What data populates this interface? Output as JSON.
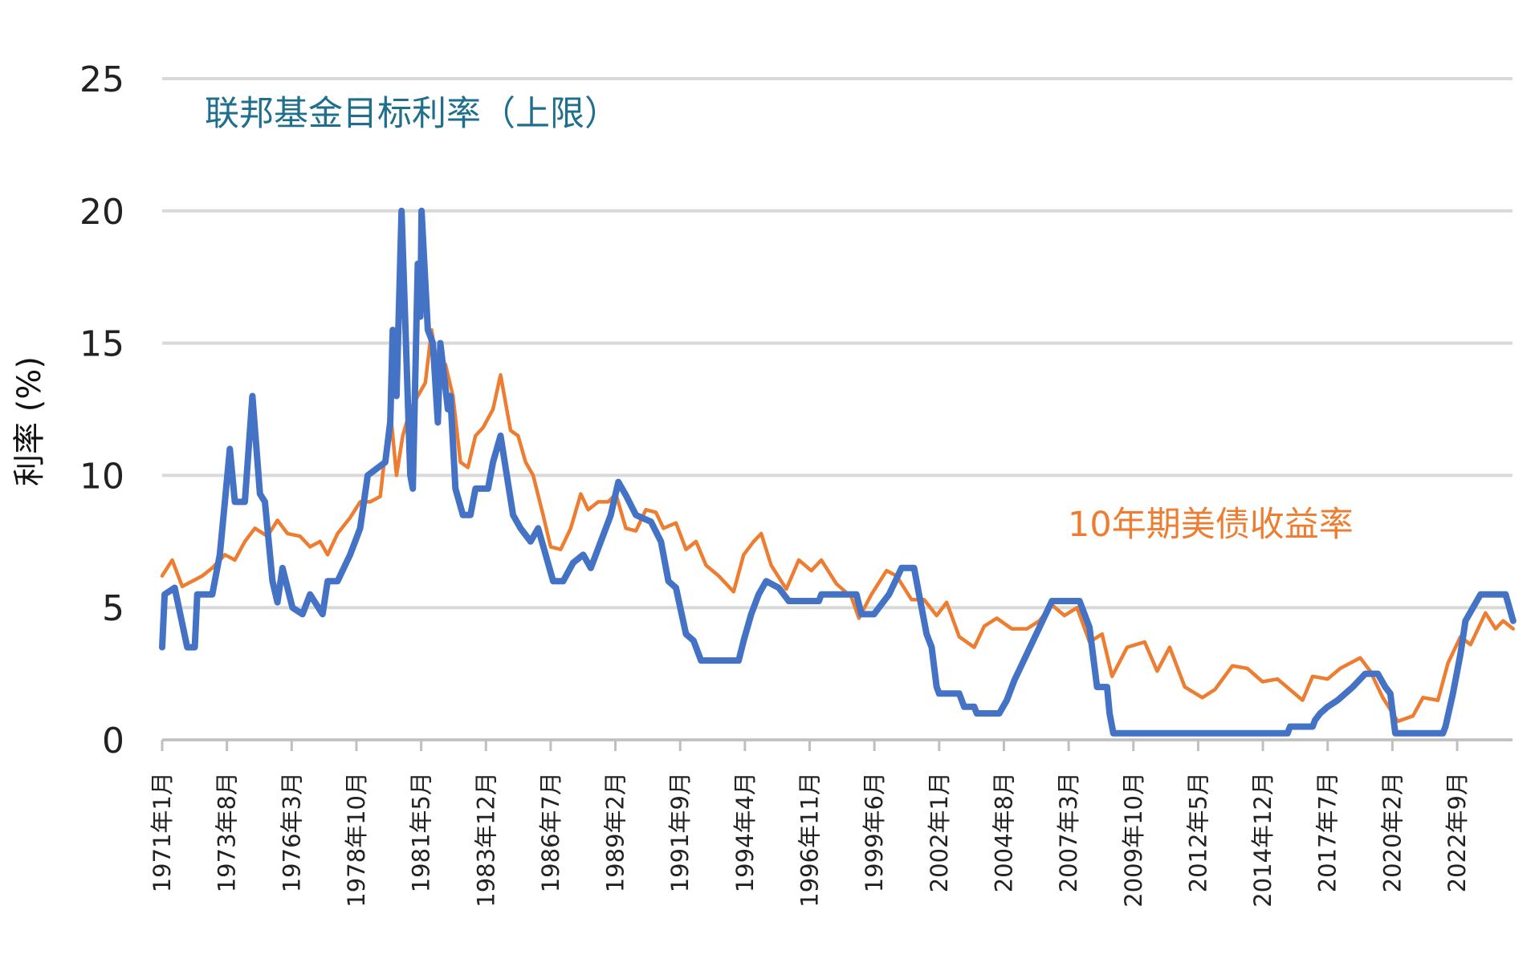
{
  "chart_data": {
    "type": "line",
    "title": "",
    "xlabel": "",
    "ylabel": "利率 (%)",
    "ylim": [
      0,
      25
    ],
    "yticks": [
      "0",
      "5",
      "10",
      "15",
      "20",
      "25"
    ],
    "ytick_values": [
      0,
      5,
      10,
      15,
      20,
      25
    ],
    "xlim": [
      1971.0,
      2024.9
    ],
    "grid": true,
    "xtick_labels": [
      "1971年1月",
      "1973年8月",
      "1976年3月",
      "1978年10月",
      "1981年5月",
      "1983年12月",
      "1986年7月",
      "1989年2月",
      "1991年9月",
      "1994年4月",
      "1996年11月",
      "1999年6月",
      "2002年1月",
      "2004年8月",
      "2007年3月",
      "2009年10月",
      "2012年5月",
      "2014年12月",
      "2017年7月",
      "2020年2月",
      "2022年9月"
    ],
    "xtick_values": [
      1971.0,
      1973.583,
      1976.167,
      1978.75,
      1981.333,
      1983.917,
      1986.5,
      1989.083,
      1991.667,
      1994.25,
      1996.833,
      1999.417,
      2002.0,
      2004.583,
      2007.167,
      2009.75,
      2012.333,
      2014.917,
      2017.5,
      2020.083,
      2022.667
    ],
    "series": [
      {
        "name": "联邦基金目标利率（上限）",
        "color": "#4472C4",
        "points": [
          [
            1971.0,
            3.5
          ],
          [
            1971.1,
            5.5
          ],
          [
            1971.5,
            5.75
          ],
          [
            1972.0,
            3.5
          ],
          [
            1972.3,
            3.5
          ],
          [
            1972.4,
            5.5
          ],
          [
            1973.0,
            5.5
          ],
          [
            1973.3,
            7
          ],
          [
            1973.5,
            9
          ],
          [
            1973.7,
            11
          ],
          [
            1973.9,
            9
          ],
          [
            1974.3,
            9
          ],
          [
            1974.6,
            13
          ],
          [
            1974.9,
            9.3
          ],
          [
            1975.1,
            9
          ],
          [
            1975.4,
            6
          ],
          [
            1975.6,
            5.2
          ],
          [
            1975.8,
            6.5
          ],
          [
            1976.2,
            5
          ],
          [
            1976.6,
            4.75
          ],
          [
            1976.9,
            5.5
          ],
          [
            1977.4,
            4.75
          ],
          [
            1977.6,
            6
          ],
          [
            1978.0,
            6
          ],
          [
            1978.5,
            7
          ],
          [
            1978.9,
            8
          ],
          [
            1979.2,
            10
          ],
          [
            1979.9,
            10.5
          ],
          [
            1980.1,
            12
          ],
          [
            1980.2,
            15.5
          ],
          [
            1980.35,
            13
          ],
          [
            1980.55,
            20
          ],
          [
            1980.9,
            10
          ],
          [
            1981.0,
            9.5
          ],
          [
            1981.2,
            18
          ],
          [
            1981.3,
            16
          ],
          [
            1981.35,
            20
          ],
          [
            1981.6,
            15.5
          ],
          [
            1981.8,
            15
          ],
          [
            1982.0,
            12
          ],
          [
            1982.1,
            15
          ],
          [
            1982.4,
            12.5
          ],
          [
            1982.5,
            13
          ],
          [
            1982.7,
            9.5
          ],
          [
            1983.0,
            8.5
          ],
          [
            1983.3,
            8.5
          ],
          [
            1983.5,
            9.5
          ],
          [
            1984.0,
            9.5
          ],
          [
            1984.2,
            10.5
          ],
          [
            1984.5,
            11.5
          ],
          [
            1985.0,
            8.5
          ],
          [
            1985.3,
            8
          ],
          [
            1985.7,
            7.5
          ],
          [
            1986.0,
            8
          ],
          [
            1986.3,
            7
          ],
          [
            1986.6,
            6
          ],
          [
            1987.0,
            6
          ],
          [
            1987.4,
            6.7
          ],
          [
            1987.8,
            7
          ],
          [
            1988.1,
            6.5
          ],
          [
            1988.5,
            7.5
          ],
          [
            1988.9,
            8.5
          ],
          [
            1989.2,
            9.75
          ],
          [
            1989.5,
            9.25
          ],
          [
            1989.9,
            8.5
          ],
          [
            1990.5,
            8.25
          ],
          [
            1990.9,
            7.5
          ],
          [
            1991.2,
            6
          ],
          [
            1991.5,
            5.75
          ],
          [
            1991.9,
            4
          ],
          [
            1992.2,
            3.75
          ],
          [
            1992.5,
            3
          ],
          [
            1994.0,
            3
          ],
          [
            1994.2,
            3.75
          ],
          [
            1994.5,
            4.75
          ],
          [
            1994.8,
            5.5
          ],
          [
            1995.1,
            6
          ],
          [
            1995.6,
            5.75
          ],
          [
            1996.0,
            5.25
          ],
          [
            1997.2,
            5.25
          ],
          [
            1997.3,
            5.5
          ],
          [
            1998.7,
            5.5
          ],
          [
            1998.9,
            4.75
          ],
          [
            1999.4,
            4.75
          ],
          [
            2000.0,
            5.5
          ],
          [
            2000.5,
            6.5
          ],
          [
            2001.0,
            6.5
          ],
          [
            2001.2,
            5.5
          ],
          [
            2001.5,
            4
          ],
          [
            2001.7,
            3.5
          ],
          [
            2001.9,
            2
          ],
          [
            2002.0,
            1.75
          ],
          [
            2002.8,
            1.75
          ],
          [
            2003.0,
            1.25
          ],
          [
            2003.4,
            1.25
          ],
          [
            2003.5,
            1
          ],
          [
            2004.4,
            1
          ],
          [
            2004.7,
            1.5
          ],
          [
            2005.0,
            2.25
          ],
          [
            2005.5,
            3.25
          ],
          [
            2006.0,
            4.25
          ],
          [
            2006.5,
            5.25
          ],
          [
            2007.6,
            5.25
          ],
          [
            2007.8,
            4.75
          ],
          [
            2008.0,
            4.25
          ],
          [
            2008.3,
            2
          ],
          [
            2008.7,
            2
          ],
          [
            2008.8,
            1
          ],
          [
            2008.95,
            0.25
          ],
          [
            2015.9,
            0.25
          ],
          [
            2016.0,
            0.5
          ],
          [
            2016.9,
            0.5
          ],
          [
            2017.0,
            0.75
          ],
          [
            2017.2,
            1
          ],
          [
            2017.5,
            1.25
          ],
          [
            2017.9,
            1.5
          ],
          [
            2018.5,
            2
          ],
          [
            2019.0,
            2.5
          ],
          [
            2019.5,
            2.5
          ],
          [
            2019.8,
            2
          ],
          [
            2020.0,
            1.75
          ],
          [
            2020.2,
            0.25
          ],
          [
            2022.1,
            0.25
          ],
          [
            2022.2,
            0.5
          ],
          [
            2022.5,
            1.75
          ],
          [
            2022.8,
            3.25
          ],
          [
            2023.0,
            4.5
          ],
          [
            2023.3,
            5
          ],
          [
            2023.6,
            5.5
          ],
          [
            2024.6,
            5.5
          ],
          [
            2024.75,
            5
          ],
          [
            2024.9,
            4.5
          ]
        ]
      },
      {
        "name": "10年期美债收益率",
        "color": "#ED7D31",
        "points": [
          [
            1971.0,
            6.2
          ],
          [
            1971.4,
            6.8
          ],
          [
            1971.8,
            5.8
          ],
          [
            1972.2,
            6.0
          ],
          [
            1972.6,
            6.2
          ],
          [
            1973.0,
            6.5
          ],
          [
            1973.5,
            7.0
          ],
          [
            1973.9,
            6.8
          ],
          [
            1974.3,
            7.5
          ],
          [
            1974.7,
            8.0
          ],
          [
            1975.2,
            7.7
          ],
          [
            1975.6,
            8.3
          ],
          [
            1976.0,
            7.8
          ],
          [
            1976.5,
            7.7
          ],
          [
            1976.9,
            7.3
          ],
          [
            1977.3,
            7.5
          ],
          [
            1977.6,
            7.0
          ],
          [
            1978.0,
            7.8
          ],
          [
            1978.5,
            8.4
          ],
          [
            1978.9,
            9.0
          ],
          [
            1979.3,
            9.0
          ],
          [
            1979.7,
            9.2
          ],
          [
            1980.1,
            12.5
          ],
          [
            1980.35,
            10.0
          ],
          [
            1980.6,
            11.5
          ],
          [
            1980.9,
            12.5
          ],
          [
            1981.2,
            13.0
          ],
          [
            1981.5,
            13.5
          ],
          [
            1981.75,
            15.5
          ],
          [
            1982.0,
            14.0
          ],
          [
            1982.3,
            14.2
          ],
          [
            1982.6,
            13.0
          ],
          [
            1982.9,
            10.5
          ],
          [
            1983.2,
            10.3
          ],
          [
            1983.5,
            11.5
          ],
          [
            1983.8,
            11.8
          ],
          [
            1984.2,
            12.5
          ],
          [
            1984.5,
            13.8
          ],
          [
            1984.9,
            11.7
          ],
          [
            1985.2,
            11.5
          ],
          [
            1985.5,
            10.5
          ],
          [
            1985.8,
            10.0
          ],
          [
            1986.2,
            8.5
          ],
          [
            1986.5,
            7.3
          ],
          [
            1986.9,
            7.2
          ],
          [
            1987.3,
            8.0
          ],
          [
            1987.7,
            9.3
          ],
          [
            1988.0,
            8.7
          ],
          [
            1988.4,
            9.0
          ],
          [
            1988.8,
            9.0
          ],
          [
            1989.1,
            9.3
          ],
          [
            1989.5,
            8.0
          ],
          [
            1989.9,
            7.9
          ],
          [
            1990.3,
            8.7
          ],
          [
            1990.7,
            8.6
          ],
          [
            1991.0,
            8.0
          ],
          [
            1991.5,
            8.2
          ],
          [
            1991.9,
            7.2
          ],
          [
            1992.3,
            7.5
          ],
          [
            1992.7,
            6.6
          ],
          [
            1993.2,
            6.2
          ],
          [
            1993.8,
            5.6
          ],
          [
            1994.2,
            7.0
          ],
          [
            1994.6,
            7.5
          ],
          [
            1994.9,
            7.8
          ],
          [
            1995.3,
            6.6
          ],
          [
            1995.9,
            5.7
          ],
          [
            1996.4,
            6.8
          ],
          [
            1996.9,
            6.4
          ],
          [
            1997.3,
            6.8
          ],
          [
            1997.9,
            5.9
          ],
          [
            1998.5,
            5.4
          ],
          [
            1998.8,
            4.6
          ],
          [
            1999.3,
            5.5
          ],
          [
            1999.9,
            6.4
          ],
          [
            2000.3,
            6.2
          ],
          [
            2000.9,
            5.3
          ],
          [
            2001.4,
            5.3
          ],
          [
            2001.9,
            4.7
          ],
          [
            2002.3,
            5.2
          ],
          [
            2002.8,
            3.9
          ],
          [
            2003.4,
            3.5
          ],
          [
            2003.8,
            4.3
          ],
          [
            2004.3,
            4.6
          ],
          [
            2004.9,
            4.2
          ],
          [
            2005.5,
            4.2
          ],
          [
            2006.0,
            4.5
          ],
          [
            2006.5,
            5.1
          ],
          [
            2007.0,
            4.7
          ],
          [
            2007.5,
            5.0
          ],
          [
            2008.0,
            3.7
          ],
          [
            2008.5,
            4.0
          ],
          [
            2008.9,
            2.4
          ],
          [
            2009.5,
            3.5
          ],
          [
            2010.2,
            3.7
          ],
          [
            2010.7,
            2.6
          ],
          [
            2011.2,
            3.5
          ],
          [
            2011.8,
            2.0
          ],
          [
            2012.5,
            1.6
          ],
          [
            2013.0,
            1.9
          ],
          [
            2013.7,
            2.8
          ],
          [
            2014.3,
            2.7
          ],
          [
            2014.9,
            2.2
          ],
          [
            2015.5,
            2.3
          ],
          [
            2016.5,
            1.5
          ],
          [
            2016.9,
            2.4
          ],
          [
            2017.5,
            2.3
          ],
          [
            2018.0,
            2.7
          ],
          [
            2018.8,
            3.1
          ],
          [
            2019.2,
            2.6
          ],
          [
            2019.7,
            1.6
          ],
          [
            2020.3,
            0.7
          ],
          [
            2020.9,
            0.9
          ],
          [
            2021.3,
            1.6
          ],
          [
            2021.9,
            1.5
          ],
          [
            2022.3,
            2.9
          ],
          [
            2022.8,
            3.9
          ],
          [
            2023.2,
            3.6
          ],
          [
            2023.8,
            4.8
          ],
          [
            2024.2,
            4.2
          ],
          [
            2024.5,
            4.5
          ],
          [
            2024.9,
            4.2
          ]
        ]
      }
    ],
    "annotations": {
      "fed_label": "联邦基金目标利率（上限）",
      "treasury_label": "10年期美债收益率"
    },
    "legend": "inline annotations"
  }
}
